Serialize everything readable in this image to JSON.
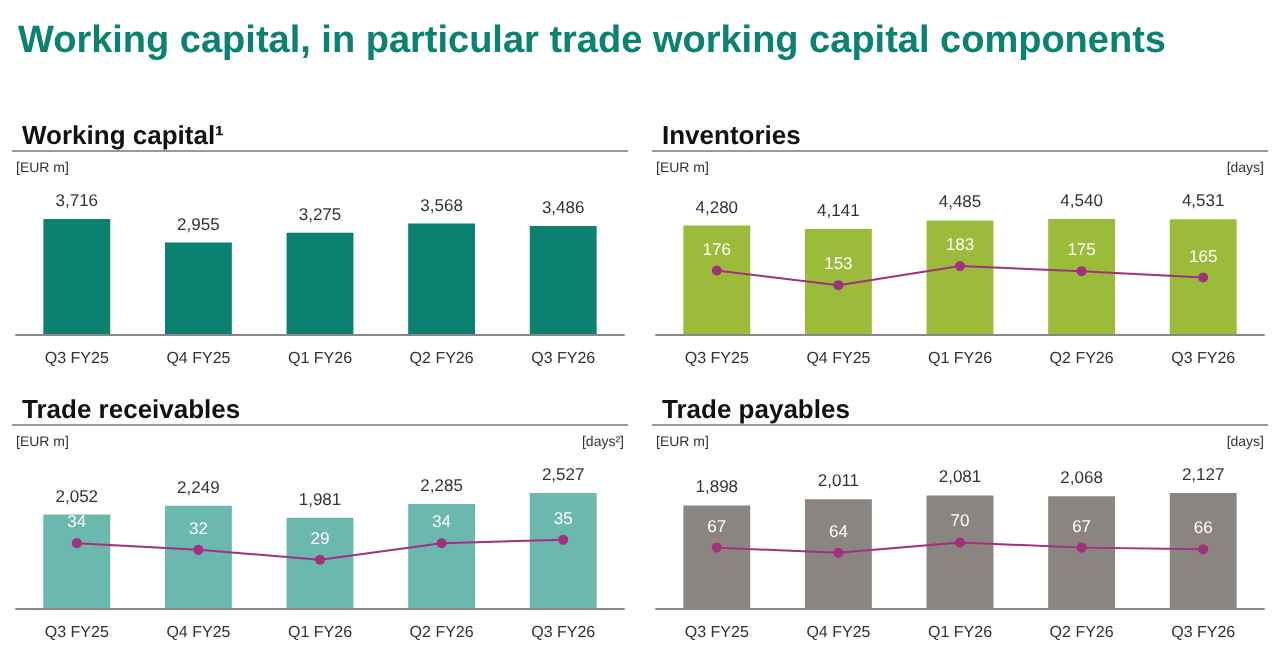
{
  "chart_data": [
    {
      "type": "other",
      "title": "Working capital, in particular trade working capital components"
    },
    {
      "type": "bar",
      "title": "Working capital¹",
      "ylabel": "[EUR m]",
      "categories": [
        "Q3 FY25",
        "Q4 FY25",
        "Q1 FY26",
        "Q2 FY26",
        "Q3 FY26"
      ],
      "series": [
        {
          "color": "#0b8170",
          "values": [
            3716,
            2955,
            3275,
            3568,
            3486
          ],
          "value_labels": [
            "3,716",
            "2,955",
            "3,275",
            "3,568",
            "3,486"
          ]
        }
      ]
    },
    {
      "type": "bar",
      "title": "Inventories",
      "ylabel": "[EUR m]",
      "y2label": "[days]",
      "categories": [
        "Q3 FY25",
        "Q4 FY25",
        "Q1 FY26",
        "Q2 FY26",
        "Q3 FY26"
      ],
      "marker": "circle",
      "series": [
        {
          "color": "#9bbb3b",
          "values": [
            4280,
            4141,
            4485,
            4540,
            4531
          ],
          "value_labels": [
            "4,280",
            "4,141",
            "4,485",
            "4,540",
            "4,531"
          ]
        },
        {
          "type": "line",
          "axis": "y2",
          "color": "#a3307e",
          "values": [
            176,
            153,
            183,
            175,
            165
          ],
          "value_labels": [
            "176",
            "153",
            "183",
            "175",
            "165"
          ]
        }
      ]
    },
    {
      "type": "bar",
      "title": "Trade receivables",
      "ylabel": "[EUR m]",
      "y2label": "[days²]",
      "categories": [
        "Q3 FY25",
        "Q4 FY25",
        "Q1 FY26",
        "Q2 FY26",
        "Q3 FY26"
      ],
      "marker": "circle",
      "series": [
        {
          "color": "#6bb8ae",
          "values": [
            2052,
            2249,
            1981,
            2285,
            2527
          ],
          "value_labels": [
            "2,052",
            "2,249",
            "1,981",
            "2,285",
            "2,527"
          ]
        },
        {
          "type": "line",
          "axis": "y2",
          "color": "#a3307e",
          "values": [
            34,
            32,
            29,
            34,
            35
          ],
          "value_labels": [
            "34",
            "32",
            "29",
            "34",
            "35"
          ]
        }
      ]
    },
    {
      "type": "bar",
      "title": "Trade payables",
      "ylabel": "[EUR m]",
      "y2label": "[days]",
      "categories": [
        "Q3 FY25",
        "Q4 FY25",
        "Q1 FY26",
        "Q2 FY26",
        "Q3 FY26"
      ],
      "marker": "circle",
      "series": [
        {
          "color": "#8b8581",
          "values": [
            1898,
            2011,
            2081,
            2068,
            2127
          ],
          "value_labels": [
            "1,898",
            "2,011",
            "2,081",
            "2,068",
            "2,127"
          ]
        },
        {
          "type": "line",
          "axis": "y2",
          "color": "#a3307e",
          "values": [
            67,
            64,
            70,
            67,
            66
          ],
          "value_labels": [
            "67",
            "64",
            "70",
            "67",
            "66"
          ]
        }
      ]
    }
  ]
}
